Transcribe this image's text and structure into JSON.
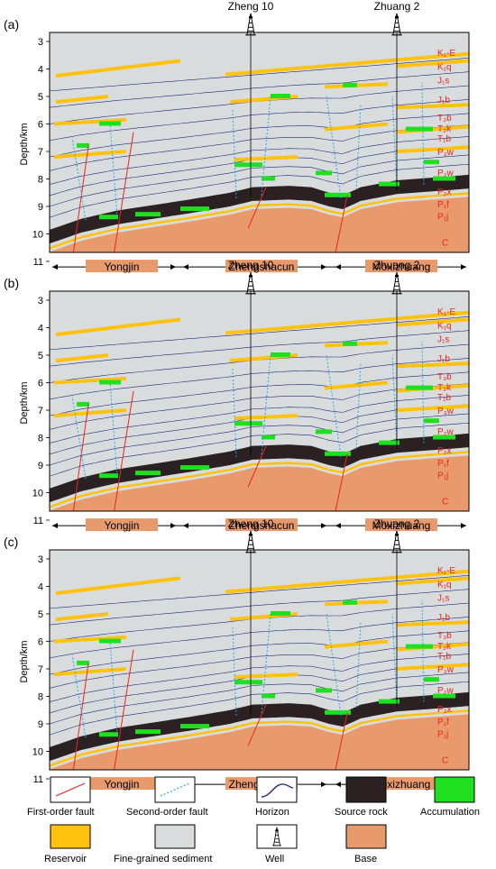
{
  "panels": [
    {
      "id": "a",
      "label": "(a)"
    },
    {
      "id": "b",
      "label": "(b)"
    },
    {
      "id": "c",
      "label": "(c)"
    }
  ],
  "depth_axis": {
    "label": "Depth/km",
    "ticks": [
      "3",
      "4",
      "5",
      "6",
      "7",
      "8",
      "9",
      "10",
      "11"
    ]
  },
  "wells": [
    "Zheng 10",
    "Zhuang 2"
  ],
  "units": [
    "K₁-E",
    "K₁q",
    "J₁s",
    "J₁b",
    "T₃b",
    "T₂k",
    "T₁b",
    "P₃w",
    "P₂w",
    "P₂x",
    "P₁f",
    "P₁j",
    "C"
  ],
  "regions": [
    "Yongjin",
    "Zhengshacun",
    "Moxizhuang"
  ],
  "legend": [
    {
      "key": "first_order_fault",
      "label": "First-order fault",
      "color": "#e8251e"
    },
    {
      "key": "second_order_fault",
      "label": "Second-order fault",
      "color": "#29a8e0"
    },
    {
      "key": "horizon",
      "label": "Horizon",
      "color": "#1f2a7a"
    },
    {
      "key": "source_rock",
      "label": "Source rock",
      "color": "#2b2123"
    },
    {
      "key": "accumulation",
      "label": "Accumulation",
      "color": "#1fe01f"
    },
    {
      "key": "reservoir",
      "label": "Reservoir",
      "color": "#ffc20e"
    },
    {
      "key": "fine_grained_sediment",
      "label": "Fine-grained sediment",
      "color": "#d9dcdc"
    },
    {
      "key": "well",
      "label": "Well",
      "color": "#000000"
    },
    {
      "key": "base",
      "label": "Base",
      "color": "#e89a6c"
    }
  ]
}
